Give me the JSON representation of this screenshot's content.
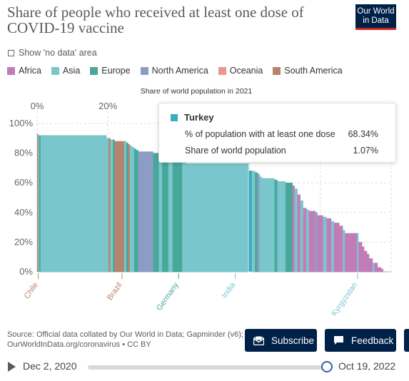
{
  "header": {
    "title": "Share of people who received at least one dose of COVID-19 vaccine",
    "logo_line1": "Our World",
    "logo_line2": "in Data"
  },
  "controls": {
    "no_data_label": "Show 'no data' area"
  },
  "legend": [
    {
      "label": "Africa",
      "color": "#c17cb8"
    },
    {
      "label": "Asia",
      "color": "#7ac6cd"
    },
    {
      "label": "Europe",
      "color": "#47a89a"
    },
    {
      "label": "North America",
      "color": "#8d9cc6"
    },
    {
      "label": "Oceania",
      "color": "#e8998b"
    },
    {
      "label": "South America",
      "color": "#b5846c"
    }
  ],
  "tooltip": {
    "country": "Turkey",
    "color": "#3aacbf",
    "row1_label": "% of population with at least one dose",
    "row1_value": "68.34%",
    "row2_label": "Share of world population",
    "row2_value": "1.07%"
  },
  "chart_data": {
    "type": "bar",
    "subtype": "marimekko",
    "x_axis_label": "Share of world population in 2021",
    "x_ticks": [
      "0%",
      "20%"
    ],
    "y_ticks": [
      "0%",
      "20%",
      "40%",
      "60%",
      "80%",
      "100%"
    ],
    "ylim": [
      0,
      100
    ],
    "xlim": [
      0,
      100
    ],
    "grid": true,
    "highlighted": "Turkey",
    "entity_labels": [
      {
        "label": "Chile",
        "x": 0.3,
        "color": "#b5846c"
      },
      {
        "label": "Brazil",
        "x": 24.0,
        "color": "#b5846c"
      },
      {
        "label": "Germany",
        "x": 40.0,
        "color": "#47a89a"
      },
      {
        "label": "India",
        "x": 56.0,
        "color": "#7ac6cd"
      },
      {
        "label": "Kyrgyzstan",
        "x": 90.5,
        "color": "#7ac6cd"
      }
    ],
    "bars": [
      {
        "x": 0.0,
        "w": 0.3,
        "value": 93,
        "region": "South America"
      },
      {
        "x": 0.3,
        "w": 0.3,
        "value": 92,
        "region": "Asia"
      },
      {
        "x": 0.6,
        "w": 0.4,
        "value": 92,
        "region": "Europe"
      },
      {
        "x": 1.0,
        "w": 0.6,
        "value": 92,
        "region": "Asia"
      },
      {
        "x": 1.6,
        "w": 18.0,
        "value": 92,
        "region": "Asia"
      },
      {
        "x": 19.6,
        "w": 0.6,
        "value": 90,
        "region": "Asia"
      },
      {
        "x": 20.2,
        "w": 0.5,
        "value": 90,
        "region": "South America"
      },
      {
        "x": 20.7,
        "w": 0.7,
        "value": 89,
        "region": "Asia"
      },
      {
        "x": 21.4,
        "w": 0.5,
        "value": 89,
        "region": "Europe"
      },
      {
        "x": 21.9,
        "w": 2.7,
        "value": 88,
        "region": "South America"
      },
      {
        "x": 24.6,
        "w": 0.6,
        "value": 88,
        "region": "Asia"
      },
      {
        "x": 25.2,
        "w": 0.5,
        "value": 87,
        "region": "Europe"
      },
      {
        "x": 25.7,
        "w": 0.5,
        "value": 86,
        "region": "South America"
      },
      {
        "x": 26.2,
        "w": 0.6,
        "value": 85,
        "region": "Asia"
      },
      {
        "x": 26.8,
        "w": 0.6,
        "value": 84,
        "region": "Asia"
      },
      {
        "x": 27.4,
        "w": 0.5,
        "value": 83,
        "region": "Europe"
      },
      {
        "x": 27.9,
        "w": 0.7,
        "value": 82,
        "region": "Europe"
      },
      {
        "x": 28.6,
        "w": 4.2,
        "value": 81,
        "region": "North America"
      },
      {
        "x": 32.8,
        "w": 0.6,
        "value": 80,
        "region": "Europe"
      },
      {
        "x": 33.4,
        "w": 1.0,
        "value": 80,
        "region": "Europe"
      },
      {
        "x": 34.4,
        "w": 0.9,
        "value": 79,
        "region": "Asia"
      },
      {
        "x": 35.3,
        "w": 1.0,
        "value": 79,
        "region": "Europe"
      },
      {
        "x": 36.3,
        "w": 0.8,
        "value": 78,
        "region": "Europe"
      },
      {
        "x": 37.1,
        "w": 1.2,
        "value": 77,
        "region": "Asia"
      },
      {
        "x": 38.3,
        "w": 1.2,
        "value": 76,
        "region": "Europe"
      },
      {
        "x": 39.5,
        "w": 1.5,
        "value": 75,
        "region": "Europe"
      },
      {
        "x": 41.0,
        "w": 1.0,
        "value": 74,
        "region": "Asia"
      },
      {
        "x": 42.0,
        "w": 17.7,
        "value": 73,
        "region": "Asia"
      },
      {
        "x": 59.7,
        "w": 1.07,
        "value": 68.34,
        "region": "Asia",
        "name": "Turkey"
      },
      {
        "x": 60.77,
        "w": 0.8,
        "value": 68,
        "region": "Asia"
      },
      {
        "x": 61.57,
        "w": 0.7,
        "value": 67,
        "region": "Europe"
      },
      {
        "x": 62.27,
        "w": 0.6,
        "value": 66,
        "region": "North America"
      },
      {
        "x": 62.87,
        "w": 0.7,
        "value": 64,
        "region": "Asia"
      },
      {
        "x": 63.57,
        "w": 3.5,
        "value": 63,
        "region": "Asia"
      },
      {
        "x": 67.07,
        "w": 0.8,
        "value": 62,
        "region": "Europe"
      },
      {
        "x": 67.87,
        "w": 2.3,
        "value": 61,
        "region": "Asia"
      },
      {
        "x": 70.17,
        "w": 2.0,
        "value": 60,
        "region": "Europe"
      },
      {
        "x": 72.17,
        "w": 0.6,
        "value": 58,
        "region": "Africa"
      },
      {
        "x": 72.77,
        "w": 0.8,
        "value": 56,
        "region": "Asia"
      },
      {
        "x": 73.57,
        "w": 0.8,
        "value": 52,
        "region": "Africa"
      },
      {
        "x": 74.37,
        "w": 0.8,
        "value": 48,
        "region": "Asia"
      },
      {
        "x": 75.17,
        "w": 0.9,
        "value": 43,
        "region": "Africa"
      },
      {
        "x": 76.07,
        "w": 0.7,
        "value": 42,
        "region": "Asia"
      },
      {
        "x": 76.77,
        "w": 1.8,
        "value": 41,
        "region": "Africa"
      },
      {
        "x": 78.57,
        "w": 0.6,
        "value": 40,
        "region": "North America"
      },
      {
        "x": 79.17,
        "w": 1.6,
        "value": 38,
        "region": "Africa"
      },
      {
        "x": 80.77,
        "w": 1.0,
        "value": 37,
        "region": "Asia"
      },
      {
        "x": 81.77,
        "w": 1.3,
        "value": 36,
        "region": "Africa"
      },
      {
        "x": 83.07,
        "w": 0.8,
        "value": 34,
        "region": "Asia"
      },
      {
        "x": 83.87,
        "w": 1.5,
        "value": 33,
        "region": "Africa"
      },
      {
        "x": 85.37,
        "w": 1.0,
        "value": 31,
        "region": "Africa"
      },
      {
        "x": 86.37,
        "w": 0.6,
        "value": 28,
        "region": "Asia"
      },
      {
        "x": 86.97,
        "w": 3.4,
        "value": 26,
        "region": "Africa"
      },
      {
        "x": 90.37,
        "w": 0.4,
        "value": 26,
        "region": "Asia"
      },
      {
        "x": 90.77,
        "w": 1.0,
        "value": 20,
        "region": "Africa"
      },
      {
        "x": 91.77,
        "w": 0.6,
        "value": 17,
        "region": "Africa"
      },
      {
        "x": 92.37,
        "w": 0.8,
        "value": 14,
        "region": "Africa"
      },
      {
        "x": 93.17,
        "w": 0.6,
        "value": 12,
        "region": "Africa"
      },
      {
        "x": 93.77,
        "w": 1.0,
        "value": 9,
        "region": "Africa"
      },
      {
        "x": 94.77,
        "w": 0.5,
        "value": 6,
        "region": "Asia"
      },
      {
        "x": 95.27,
        "w": 0.9,
        "value": 6,
        "region": "Africa"
      },
      {
        "x": 96.17,
        "w": 1.0,
        "value": 3,
        "region": "Africa"
      },
      {
        "x": 97.17,
        "w": 0.6,
        "value": 2,
        "region": "Africa"
      }
    ]
  },
  "footer": {
    "source_line1": "Source: Official data collated by Our World in Data; Gapminder (v6);",
    "source_line2": "OurWorldInData.org/coronavirus • CC BY",
    "subscribe_label": "Subscribe",
    "feedback_label": "Feedback",
    "subscribe_icon": "envelope-icon",
    "feedback_icon": "speech-bubble-icon"
  },
  "timeline": {
    "start_label": "Dec 2, 2020",
    "end_label": "Oct 19, 2022",
    "position": 1.0,
    "play_icon": "play-icon"
  }
}
